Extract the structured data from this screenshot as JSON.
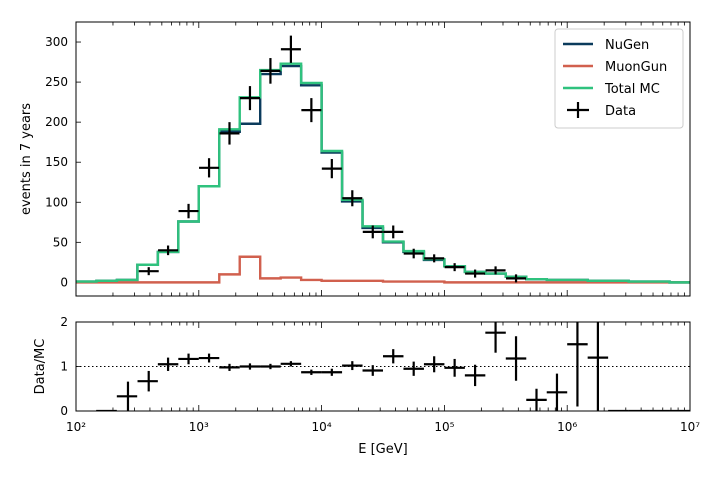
{
  "chart_data": [
    {
      "type": "line",
      "panel": "main",
      "xscale": "log",
      "xlim": [
        100,
        10000000
      ],
      "ylim": [
        -17,
        325
      ],
      "ylabel": "events in 7 years",
      "yticks": [
        0,
        50,
        100,
        150,
        200,
        250,
        300
      ],
      "ytick_labels": [
        "0",
        "50",
        "100",
        "150",
        "200",
        "250",
        "300"
      ],
      "legend_position": "top-right",
      "bin_edges": [
        100,
        146.8,
        215.4,
        316.2,
        464.2,
        681.3,
        1000,
        1467.8,
        2154.4,
        3162.3,
        4641.6,
        6812.9,
        10000,
        14678,
        21544,
        31623,
        46416,
        68129,
        100000,
        146780,
        215440,
        316230,
        464160,
        681290,
        1000000,
        1467800,
        2154400,
        3162300,
        4641600,
        6812900,
        10000000
      ],
      "series": [
        {
          "name": "NuGen",
          "color": "#0b3b5c",
          "style": "step",
          "values": [
            1,
            2,
            3,
            22,
            38,
            76,
            120,
            188,
            198,
            260,
            270,
            246,
            162,
            101,
            68,
            50,
            38,
            28,
            20,
            13,
            11,
            7,
            4,
            3,
            3,
            2,
            2,
            1,
            1,
            0
          ]
        },
        {
          "name": "MuonGun",
          "color": "#d1604e",
          "style": "step",
          "values": [
            0,
            0,
            0,
            0,
            0,
            0,
            0,
            10,
            32,
            5,
            6,
            3,
            2,
            2,
            2,
            1,
            1,
            1,
            0,
            0,
            0,
            0,
            0,
            0,
            0,
            0,
            0,
            0,
            0,
            0
          ]
        },
        {
          "name": "Total MC",
          "color": "#2fc27e",
          "style": "step",
          "values": [
            1,
            2,
            3,
            22,
            38,
            76,
            120,
            191,
            231,
            265,
            273,
            249,
            164,
            103,
            70,
            51,
            39,
            29,
            20,
            13,
            11,
            7,
            4,
            3,
            3,
            2,
            2,
            1,
            1,
            0
          ]
        },
        {
          "name": "Data",
          "color": "#000000",
          "style": "errorbar",
          "x": [
            391,
            562,
            825,
            1212,
            1778,
            2610,
            3831,
            5623,
            8254,
            12115,
            17783,
            26102,
            38312,
            56234,
            82540,
            121150,
            177830,
            261020,
            383120
          ],
          "y": [
            14,
            40,
            89,
            143,
            186,
            230,
            264,
            291,
            215,
            142,
            105,
            63,
            63,
            36,
            30,
            19,
            11,
            15,
            5
          ],
          "yerr": [
            4,
            6,
            9,
            12,
            14,
            15,
            16,
            17,
            15,
            12,
            10,
            8,
            8,
            6,
            5,
            4,
            3,
            4,
            2
          ]
        }
      ]
    },
    {
      "type": "scatter",
      "panel": "ratio",
      "xscale": "log",
      "xlim": [
        100,
        10000000
      ],
      "ylim": [
        0,
        2
      ],
      "xlabel": "E [GeV]",
      "ylabel": "Data/MC",
      "yticks": [
        0,
        1,
        2
      ],
      "ytick_labels": [
        "0",
        "1",
        "2"
      ],
      "xticks": [
        100,
        1000,
        10000,
        100000,
        1000000,
        10000000
      ],
      "xtick_labels": [
        "10²",
        "10³",
        "10⁴",
        "10⁵",
        "10⁶",
        "10⁷"
      ],
      "reference_line": 1,
      "series": [
        {
          "name": "Data",
          "color": "#000000",
          "style": "errorbar",
          "x": [
            177,
            265,
            391,
            562,
            825,
            1212,
            1778,
            2610,
            3831,
            5623,
            8254,
            12115,
            17783,
            26102,
            38312,
            56234,
            82540,
            121150,
            177830,
            261020,
            383120,
            562340,
            825400,
            1211500,
            1778300,
            2610200,
            3831200,
            5623400,
            8254000
          ],
          "y": [
            0,
            0.33,
            0.67,
            1.05,
            1.17,
            1.19,
            0.98,
            1.0,
            1.0,
            1.06,
            0.87,
            0.87,
            1.02,
            0.91,
            1.23,
            0.95,
            1.05,
            0.97,
            0.8,
            1.76,
            1.18,
            0.25,
            0.42,
            1.5,
            1.2,
            0,
            0,
            0,
            0
          ],
          "xerr_lo": [
            31,
            50,
            74,
            98,
            144,
            212,
            311,
            456,
            669,
            982,
            1441,
            2114,
            3104,
            4558,
            6689,
            9818,
            14411,
            21150,
            31050,
            45576,
            66890,
            98180,
            144110,
            211500,
            310500,
            455800,
            668900,
            981800,
            1441100
          ],
          "xerr_hi": [
            38,
            50,
            73,
            119,
            175,
            256,
            376,
            552,
            810,
            1190,
            1746,
            2563,
            3761,
            5521,
            8104,
            11895,
            17460,
            25630,
            37610,
            55210,
            81040,
            118950,
            174600,
            256300,
            376100,
            552100,
            810400,
            1189500,
            1745900
          ],
          "yerr": [
            0,
            0.33,
            0.23,
            0.15,
            0.12,
            0.1,
            0.08,
            0.07,
            0.06,
            0.06,
            0.06,
            0.08,
            0.1,
            0.12,
            0.16,
            0.16,
            0.18,
            0.2,
            0.24,
            0.45,
            0.5,
            0.25,
            0.42,
            1.4,
            1.6,
            0,
            0,
            0,
            0
          ]
        }
      ]
    }
  ]
}
